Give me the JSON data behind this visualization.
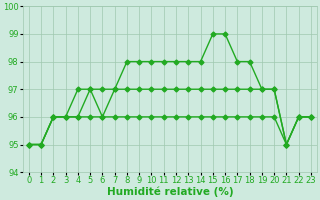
{
  "xlabel": "Humidité relative (%)",
  "xlim": [
    -0.5,
    23.5
  ],
  "ylim": [
    94,
    100
  ],
  "yticks": [
    94,
    95,
    96,
    97,
    98,
    99,
    100
  ],
  "xticks": [
    0,
    1,
    2,
    3,
    4,
    5,
    6,
    7,
    8,
    9,
    10,
    11,
    12,
    13,
    14,
    15,
    16,
    17,
    18,
    19,
    20,
    21,
    22,
    23
  ],
  "background_color": "#ceeade",
  "grid_color": "#a0c8b0",
  "line_color": "#22aa22",
  "line1_y": [
    95,
    95,
    96,
    96,
    97,
    97,
    97,
    97,
    98,
    98,
    98,
    98,
    98,
    98,
    98,
    99,
    99,
    98,
    98,
    97,
    97,
    95,
    96,
    96
  ],
  "line2_y": [
    95,
    95,
    96,
    96,
    96,
    97,
    96,
    97,
    97,
    97,
    97,
    97,
    97,
    97,
    97,
    97,
    97,
    97,
    97,
    97,
    97,
    95,
    96,
    96
  ],
  "line3_y": [
    95,
    95,
    96,
    96,
    96,
    96,
    96,
    96,
    96,
    96,
    96,
    96,
    96,
    96,
    96,
    96,
    96,
    96,
    96,
    96,
    96,
    95,
    96,
    96
  ],
  "marker": "D",
  "markersize": 2.5,
  "linewidth": 1.0,
  "xlabel_fontsize": 7.5,
  "tick_fontsize": 6.0
}
